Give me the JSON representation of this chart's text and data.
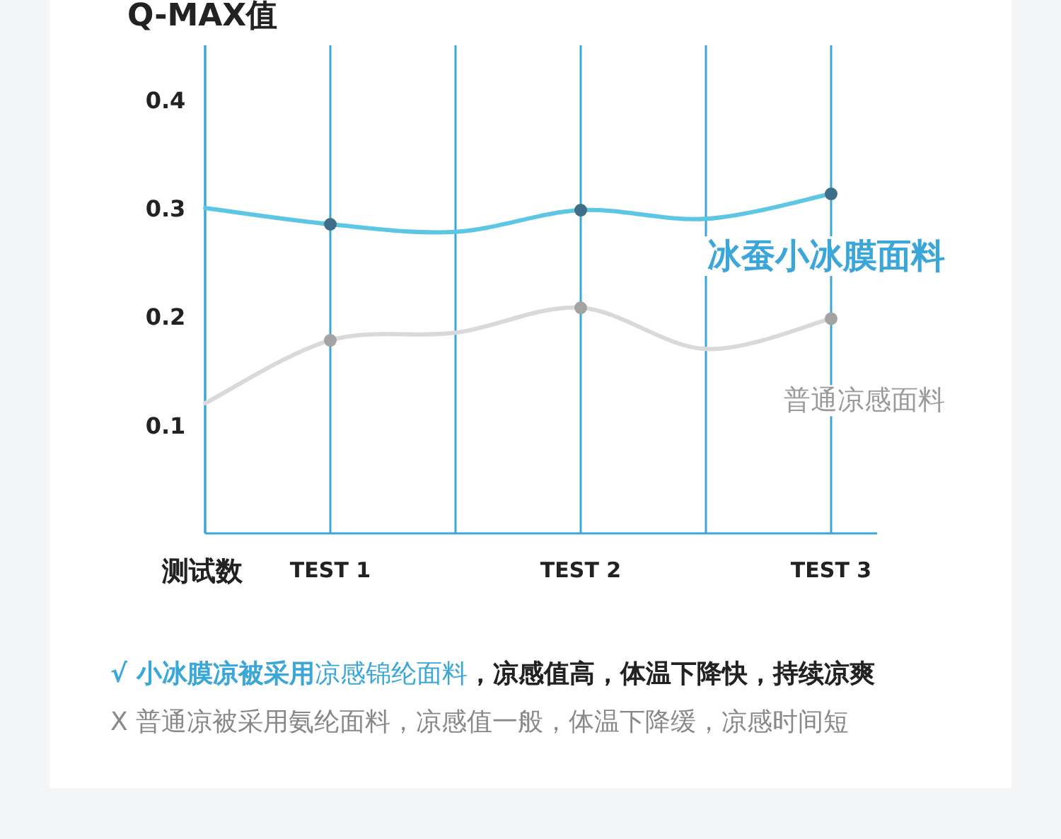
{
  "chart_data": {
    "type": "line",
    "title": "Q-MAX值",
    "xlabel": "测试数",
    "categories": [
      null,
      "TEST 1",
      null,
      "TEST 2",
      null,
      "TEST 3"
    ],
    "ylim": [
      0,
      0.45
    ],
    "yticks": [
      0.1,
      0.2,
      0.3,
      0.4
    ],
    "grid": "x",
    "series": [
      {
        "name": "冰蚕小冰膜面料",
        "color": "#5cc6e4",
        "values": [
          0.3,
          0.285,
          0.278,
          0.298,
          0.29,
          0.313
        ]
      },
      {
        "name": "普通凉感面料",
        "color": "#d9d9d9",
        "values": [
          0.12,
          0.178,
          0.185,
          0.208,
          0.17,
          0.198
        ]
      },
      {
        "type": "scatter",
        "color": "#3f6e88",
        "values": [
          null,
          0.285,
          null,
          0.298,
          null,
          0.313
        ]
      },
      {
        "type": "scatter",
        "color": "#a3a3a3",
        "values": [
          null,
          0.178,
          null,
          0.208,
          null,
          0.198
        ]
      }
    ],
    "annotations": [
      "√ 小冰膜凉被采用",
      "凉感锦纶面料",
      "，凉感值高，体温下降快，持续凉爽",
      "X 普通凉被采用氨纶面料，凉感值一般，体温下降缓，凉感时间短"
    ]
  }
}
